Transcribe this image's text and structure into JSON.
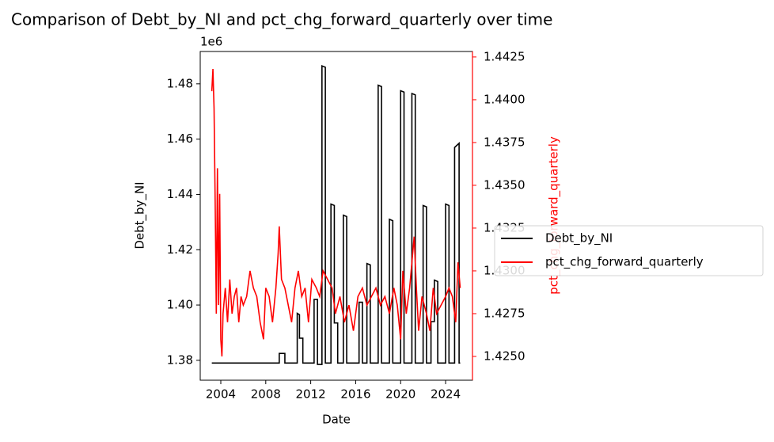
{
  "chart_data": {
    "type": "line",
    "title": "Comparison of Debt_by_NI and pct_chg_forward_quarterly over time",
    "x_label": "Date",
    "y_label": "Debt_by_NI",
    "y2_label": "pct_chg_forward_quarterly",
    "y_offset_label": "1e6",
    "xlim": [
      2002.17,
      2026.39
    ],
    "xticks": [
      2004,
      2008,
      2012,
      2016,
      2020,
      2024
    ],
    "ylim": [
      1.3728,
      1.4917
    ],
    "yticks": [
      {
        "value": 1.38,
        "label": "1.38"
      },
      {
        "value": 1.4,
        "label": "1.40"
      },
      {
        "value": 1.42,
        "label": "1.42"
      },
      {
        "value": 1.44,
        "label": "1.44"
      },
      {
        "value": 1.46,
        "label": "1.46"
      },
      {
        "value": 1.48,
        "label": "1.48"
      }
    ],
    "y2lim": [
      1.42361,
      1.44282
    ],
    "y2ticks": [
      {
        "value": 1.425,
        "label": "1.4250"
      },
      {
        "value": 1.4275,
        "label": "1.4275"
      },
      {
        "value": 1.43,
        "label": "1.4300"
      },
      {
        "value": 1.4325,
        "label": "1.4325"
      },
      {
        "value": 1.435,
        "label": "1.4350"
      },
      {
        "value": 1.4375,
        "label": "1.4375"
      },
      {
        "value": 1.44,
        "label": "1.4400"
      },
      {
        "value": 1.4425,
        "label": "1.4425"
      }
    ],
    "legend": "outside-right",
    "series": [
      {
        "name": "Debt_by_NI",
        "color": "#000000",
        "x": [
          2003.2,
          2009.2,
          2009.2,
          2009.7,
          2009.7,
          2010.8,
          2010.8,
          2011.0,
          2011.0,
          2011.3,
          2011.3,
          2012.3,
          2012.3,
          2012.6,
          2012.6,
          2013.0,
          2013.0,
          2013.3,
          2013.3,
          2013.8,
          2013.8,
          2014.1,
          2014.1,
          2014.4,
          2014.4,
          2014.9,
          2014.9,
          2015.2,
          2015.2,
          2016.3,
          2016.3,
          2016.6,
          2016.6,
          2017.0,
          2017.0,
          2017.3,
          2017.3,
          2018.0,
          2018.0,
          2018.3,
          2018.3,
          2019.0,
          2019.0,
          2019.3,
          2019.3,
          2020.0,
          2020.0,
          2020.3,
          2020.3,
          2021.0,
          2021.0,
          2021.3,
          2021.3,
          2022.0,
          2022.0,
          2022.3,
          2022.3,
          2022.7,
          2022.7,
          2023.0,
          2023.0,
          2023.3,
          2023.3,
          2024.0,
          2024.0,
          2024.3,
          2024.3,
          2024.8,
          2024.8,
          2025.2,
          2025.2,
          2025.3
        ],
        "values": [
          1.379,
          1.379,
          1.3825,
          1.3825,
          1.379,
          1.379,
          1.397,
          1.3965,
          1.388,
          1.388,
          1.379,
          1.379,
          1.402,
          1.402,
          1.3785,
          1.3785,
          1.4865,
          1.486,
          1.379,
          1.379,
          1.4365,
          1.436,
          1.3935,
          1.3935,
          1.379,
          1.379,
          1.4325,
          1.432,
          1.379,
          1.379,
          1.401,
          1.401,
          1.379,
          1.379,
          1.415,
          1.4145,
          1.379,
          1.379,
          1.4795,
          1.479,
          1.379,
          1.379,
          1.431,
          1.4305,
          1.379,
          1.379,
          1.4775,
          1.477,
          1.379,
          1.379,
          1.4765,
          1.476,
          1.379,
          1.379,
          1.436,
          1.4355,
          1.379,
          1.379,
          1.394,
          1.394,
          1.409,
          1.4085,
          1.379,
          1.379,
          1.4365,
          1.436,
          1.379,
          1.379,
          1.457,
          1.4585,
          1.379,
          1.379
        ]
      },
      {
        "name": "pct_chg_forward_quarterly",
        "color": "#ff0000",
        "axis": "y2",
        "x": [
          2003.2,
          2003.3,
          2003.4,
          2003.5,
          2003.6,
          2003.7,
          2003.8,
          2003.9,
          2004.0,
          2004.1,
          2004.2,
          2004.4,
          2004.6,
          2004.8,
          2005.0,
          2005.2,
          2005.4,
          2005.6,
          2005.8,
          2006.0,
          2006.3,
          2006.6,
          2006.9,
          2007.2,
          2007.5,
          2007.8,
          2008.0,
          2008.3,
          2008.6,
          2008.9,
          2009.1,
          2009.2,
          2009.4,
          2009.7,
          2010.0,
          2010.3,
          2010.6,
          2010.9,
          2011.2,
          2011.5,
          2011.8,
          2012.1,
          2012.5,
          2012.8,
          2013.1,
          2013.5,
          2013.9,
          2014.2,
          2014.6,
          2015.0,
          2015.4,
          2015.8,
          2016.2,
          2016.6,
          2017.0,
          2017.4,
          2017.8,
          2018.2,
          2018.6,
          2019.0,
          2019.4,
          2019.7,
          2020.0,
          2020.2,
          2020.5,
          2020.8,
          2021.0,
          2021.2,
          2021.4,
          2021.6,
          2021.9,
          2022.3,
          2022.6,
          2022.9,
          2023.2,
          2023.6,
          2024.0,
          2024.3,
          2024.6,
          2024.9,
          2025.1,
          2025.3
        ],
        "values": [
          1.4405,
          1.4418,
          1.4395,
          1.434,
          1.4275,
          1.436,
          1.428,
          1.4345,
          1.426,
          1.425,
          1.4275,
          1.429,
          1.427,
          1.4295,
          1.4275,
          1.4285,
          1.429,
          1.427,
          1.4285,
          1.428,
          1.4285,
          1.43,
          1.429,
          1.4285,
          1.427,
          1.426,
          1.429,
          1.4285,
          1.427,
          1.429,
          1.431,
          1.4326,
          1.4295,
          1.429,
          1.428,
          1.427,
          1.429,
          1.43,
          1.4285,
          1.429,
          1.427,
          1.4295,
          1.429,
          1.4285,
          1.43,
          1.4295,
          1.429,
          1.4275,
          1.4285,
          1.427,
          1.428,
          1.4265,
          1.4285,
          1.429,
          1.428,
          1.4285,
          1.429,
          1.428,
          1.4285,
          1.4275,
          1.429,
          1.428,
          1.426,
          1.43,
          1.4275,
          1.429,
          1.4305,
          1.432,
          1.429,
          1.4265,
          1.4285,
          1.4275,
          1.4265,
          1.429,
          1.4275,
          1.428,
          1.4285,
          1.429,
          1.4285,
          1.427,
          1.4305,
          1.429
        ]
      }
    ]
  }
}
